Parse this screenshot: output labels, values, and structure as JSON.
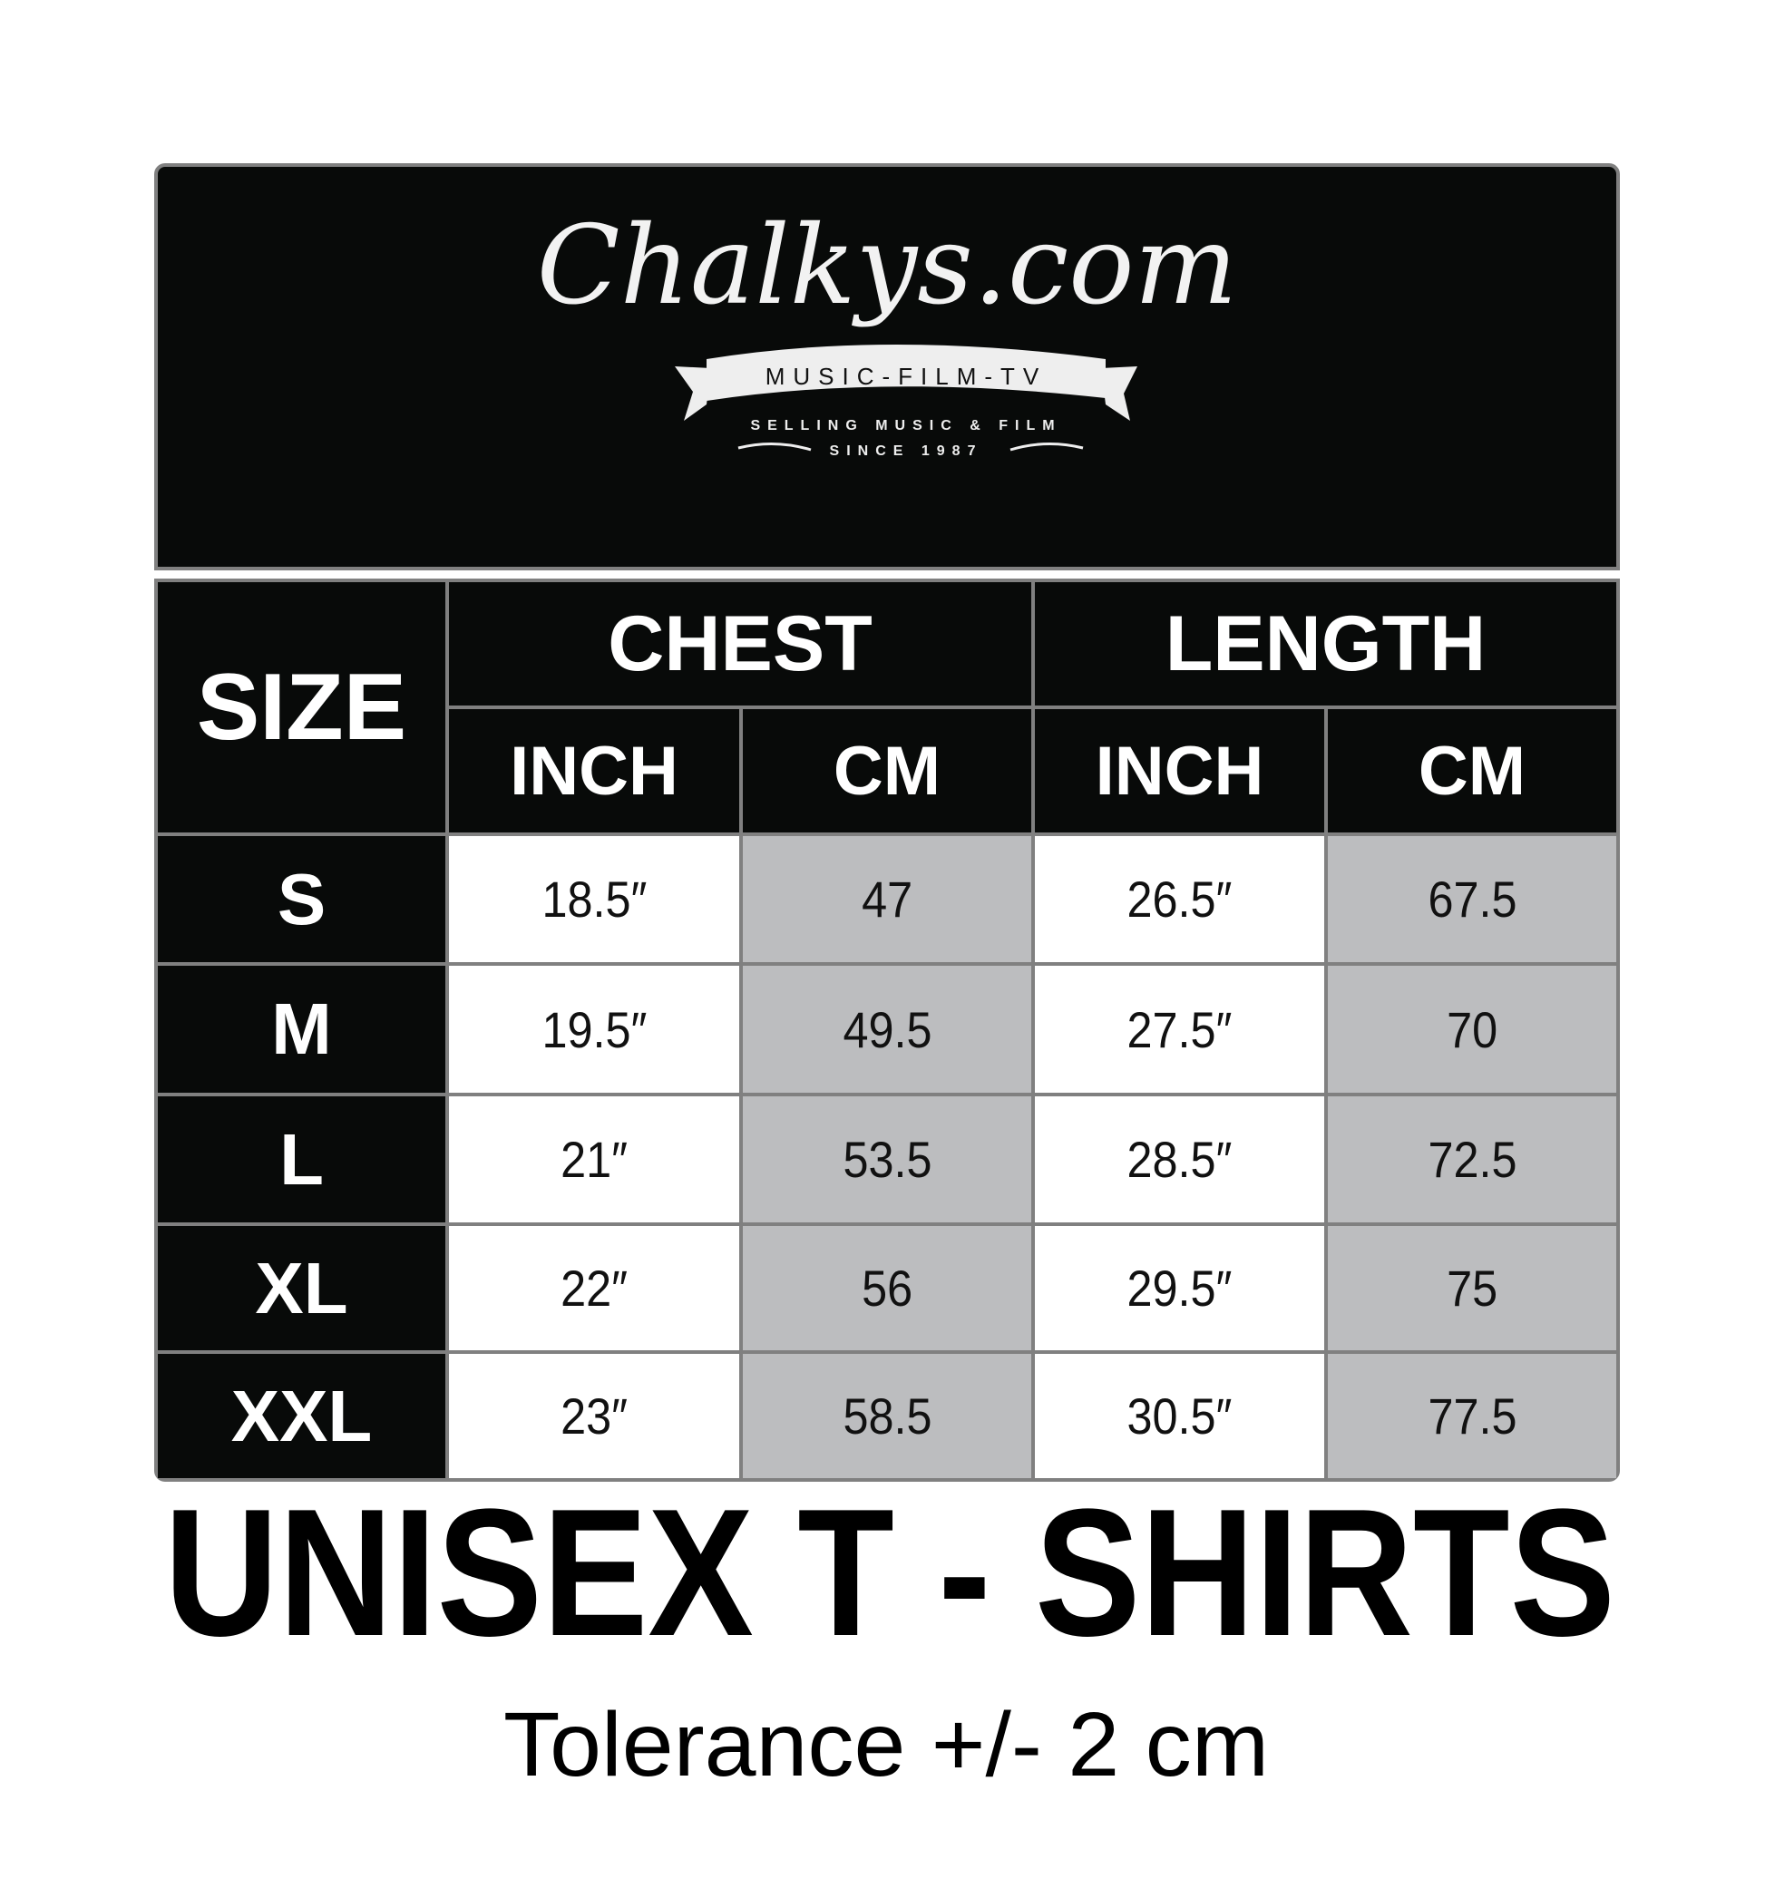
{
  "logo": {
    "brand": "Chalkys.com",
    "ribbon": "MUSIC-FILM-TV",
    "tagline": "SELLING MUSIC & FILM",
    "since": "SINCE 1987"
  },
  "table": {
    "size_header": "SIZE",
    "groups": [
      {
        "label": "CHEST",
        "units": [
          "INCH",
          "CM"
        ]
      },
      {
        "label": "LENGTH",
        "units": [
          "INCH",
          "CM"
        ]
      }
    ],
    "rows": [
      {
        "size": "S",
        "values": [
          "18.5″",
          "47",
          "26.5″",
          "67.5"
        ]
      },
      {
        "size": "M",
        "values": [
          "19.5″",
          "49.5",
          "27.5″",
          "70"
        ]
      },
      {
        "size": "L",
        "values": [
          "21″",
          "53.5",
          "28.5″",
          "72.5"
        ]
      },
      {
        "size": "XL",
        "values": [
          "22″",
          "56",
          "29.5″",
          "75"
        ]
      },
      {
        "size": "XXL",
        "values": [
          "23″",
          "58.5",
          "30.5″",
          "77.5"
        ]
      }
    ]
  },
  "title": "UNISEX T - SHIRTS",
  "tolerance": "Tolerance +/- 2 cm",
  "colors": {
    "header_bg": "#080a09",
    "border": "#808080",
    "cm_cell": "#bcbdbf",
    "inch_cell": "#ffffff"
  }
}
